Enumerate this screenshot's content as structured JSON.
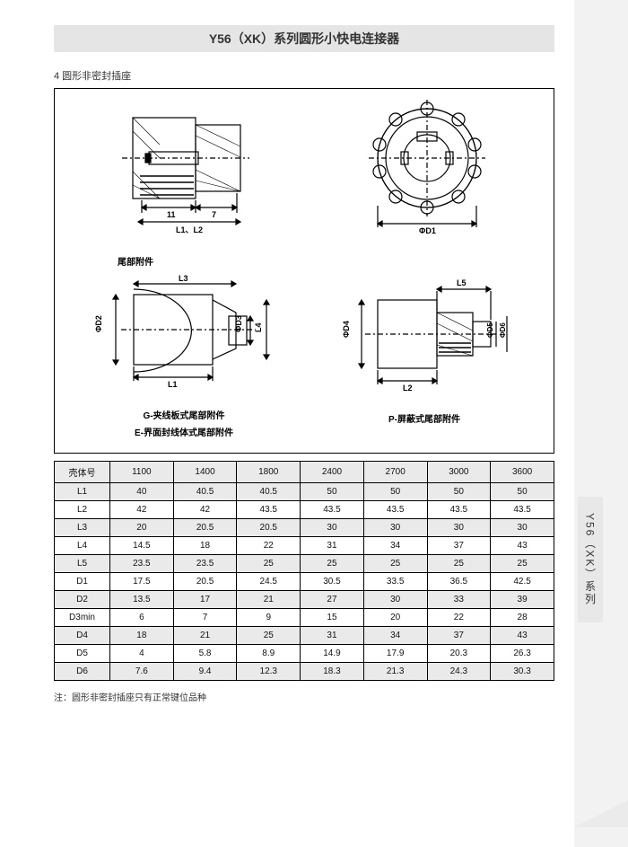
{
  "title": "Y56（XK）系列圆形小快电连接器",
  "section_label": "4 圆形非密封插座",
  "side_tab": "Y56（XK）系列",
  "diagrams": {
    "top_row_header": "尾部附件",
    "top_left": {
      "dim1": "11",
      "dim2": "7",
      "dim_line": "L1、L2"
    },
    "top_right": {
      "dia": "ΦD1"
    },
    "bot_left": {
      "l3": "L3",
      "l1": "L1",
      "l4": "L4",
      "d2": "ΦD2",
      "d3": "ΦD3",
      "caption1": "G-夹线板式尾部附件",
      "caption2": "E-界面封线体式尾部附件"
    },
    "bot_right": {
      "l5": "L5",
      "l2": "L2",
      "d4": "ΦD4",
      "d5": "ΦD5",
      "d6": "ΦD6",
      "caption": "P-屏蔽式尾部附件"
    }
  },
  "table": {
    "header_label": "壳体号",
    "columns": [
      "1100",
      "1400",
      "1800",
      "2400",
      "2700",
      "3000",
      "3600"
    ],
    "rows": [
      {
        "label": "L1",
        "values": [
          "40",
          "40.5",
          "40.5",
          "50",
          "50",
          "50",
          "50"
        ]
      },
      {
        "label": "L2",
        "values": [
          "42",
          "42",
          "43.5",
          "43.5",
          "43.5",
          "43.5",
          "43.5"
        ]
      },
      {
        "label": "L3",
        "values": [
          "20",
          "20.5",
          "20.5",
          "30",
          "30",
          "30",
          "30"
        ]
      },
      {
        "label": "L4",
        "values": [
          "14.5",
          "18",
          "22",
          "31",
          "34",
          "37",
          "43"
        ]
      },
      {
        "label": "L5",
        "values": [
          "23.5",
          "23.5",
          "25",
          "25",
          "25",
          "25",
          "25"
        ]
      },
      {
        "label": "D1",
        "values": [
          "17.5",
          "20.5",
          "24.5",
          "30.5",
          "33.5",
          "36.5",
          "42.5"
        ]
      },
      {
        "label": "D2",
        "values": [
          "13.5",
          "17",
          "21",
          "27",
          "30",
          "33",
          "39"
        ]
      },
      {
        "label": "D3min",
        "values": [
          "6",
          "7",
          "9",
          "15",
          "20",
          "22",
          "28"
        ]
      },
      {
        "label": "D4",
        "values": [
          "18",
          "21",
          "25",
          "31",
          "34",
          "37",
          "43"
        ]
      },
      {
        "label": "D5",
        "values": [
          "4",
          "5.8",
          "8.9",
          "14.9",
          "17.9",
          "20.3",
          "26.3"
        ]
      },
      {
        "label": "D6",
        "values": [
          "7.6",
          "9.4",
          "12.3",
          "18.3",
          "21.3",
          "24.3",
          "30.3"
        ]
      }
    ]
  },
  "footnote": "注：圆形非密封插座只有正常键位品种",
  "colors": {
    "page_bg": "#f2f2f2",
    "paper_bg": "#ffffff",
    "band_bg": "#e5e5e5",
    "table_border": "#000000",
    "row_shade": "#eaeaea",
    "stroke": "#000000"
  }
}
